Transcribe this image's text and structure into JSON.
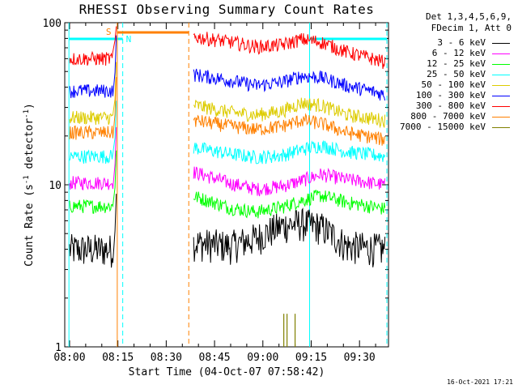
{
  "chart_data": {
    "type": "line",
    "title": "RHESSI Observing Summary Count Rates",
    "xlabel": "Start Time (04-Oct-07 07:58:42)",
    "ylabel_main": "Count Rate (s",
    "ylabel_sup": "-1",
    "ylabel_rest": " detector",
    "ylabel_sup2": "-1",
    "ylabel_end": ")",
    "y_scale": "log",
    "ylim": [
      1,
      100
    ],
    "xlim_minutes_from_0800": [
      -1.5,
      99
    ],
    "x_ticks": [
      "08:00",
      "08:15",
      "08:30",
      "08:45",
      "09:00",
      "09:15",
      "09:30"
    ],
    "y_tick_labels": [
      "1",
      "10",
      "100"
    ],
    "detector_info": [
      "Det 1,3,4,5,6,9,",
      "FDecim 1, Att 0"
    ],
    "timestamp": "16-Oct-2021 17:21",
    "markers": {
      "S_label": "S",
      "N_label": "N",
      "saa_start_min": 14.8,
      "saa_end_min": 37.0,
      "night_start_min": 16.5,
      "night_end_min": 74.5,
      "day_start_min": -0.2,
      "day2_start_min": 76.5
    },
    "data_gaps_minutes": [
      [
        15.5,
        38.5
      ]
    ],
    "series": [
      {
        "name": "3 - 6 keV",
        "color": "#000000",
        "pre": 4.0,
        "post": [
          4.4,
          4.2,
          4.7,
          5.6,
          5.8,
          5.5,
          4.2,
          4.0
        ]
      },
      {
        "name": "6 - 12 keV",
        "color": "#ff00ff",
        "pre": 10.3,
        "post": [
          12.0,
          10.2,
          9.4,
          9.8,
          10.6,
          11.6,
          10.8,
          10.0
        ],
        "color_override_note": ""
      },
      {
        "name": "12 - 25 keV",
        "color": "#00ff00",
        "pre": 7.4,
        "post": [
          8.5,
          7.2,
          6.8,
          7.3,
          8.0,
          8.6,
          7.8,
          7.1
        ]
      },
      {
        "name": "25 - 50 keV",
        "color": "#00ffff",
        "pre": 15.0,
        "post": [
          17.0,
          15.5,
          14.8,
          15.2,
          16.5,
          17.5,
          16.0,
          15.0
        ]
      },
      {
        "name": "50 - 100 keV",
        "color": "#ddcc00",
        "pre": 26.0,
        "post": [
          31.0,
          28.0,
          27.0,
          28.5,
          32.0,
          31.0,
          27.0,
          25.0
        ]
      },
      {
        "name": "100 - 300 keV",
        "color": "#0000ff",
        "pre": 38.0,
        "post": [
          48.0,
          44.0,
          41.0,
          43.0,
          47.0,
          46.0,
          41.0,
          36.0
        ]
      },
      {
        "name": "300 - 800 keV",
        "color": "#ff0000",
        "pre": 60.0,
        "post": [
          82.0,
          76.0,
          71.0,
          73.0,
          79.0,
          76.0,
          66.0,
          57.0
        ]
      },
      {
        "name": "800 - 7000 keV",
        "color": "#ff8000",
        "pre": 21.0,
        "post": [
          25.0,
          23.0,
          22.0,
          23.0,
          25.0,
          24.0,
          21.0,
          19.0
        ]
      },
      {
        "name": "7000 - 15000 keV",
        "color": "#808000",
        "pre": null,
        "post": null,
        "spikes_minutes": [
          66.5,
          67.5,
          70.0
        ],
        "spike_value": 1.6
      }
    ],
    "post_anchor_minutes": [
      38.5,
      50,
      58,
      66,
      72,
      78,
      86,
      98
    ],
    "pre_start_minutes": 0,
    "pre_end_minutes": 13.5,
    "legend_placement": "right"
  }
}
